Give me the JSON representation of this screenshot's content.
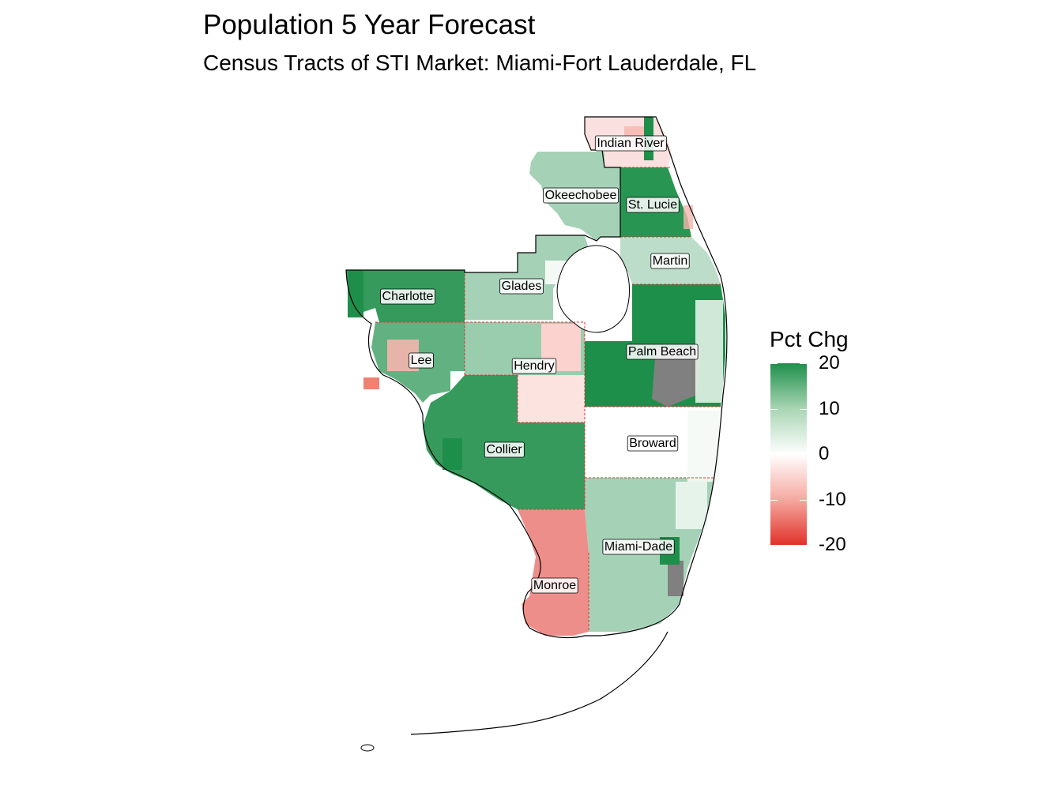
{
  "title": "Population 5 Year Forecast",
  "subtitle": "Census Tracts of STI Market: Miami-Fort Lauderdale, FL",
  "legend": {
    "title": "Pct Chg",
    "ticks": [
      {
        "value": 20,
        "label": "20"
      },
      {
        "value": 10,
        "label": "10"
      },
      {
        "value": 0,
        "label": "0"
      },
      {
        "value": -10,
        "label": "-10"
      },
      {
        "value": -20,
        "label": "-20"
      }
    ],
    "colors": {
      "high": "#1e8f4a",
      "mid": "#ffffff",
      "low": "#e0322a",
      "na": "#808080",
      "boundary": "#e0322a"
    }
  },
  "counties": [
    {
      "name": "Indian River",
      "pct_chg": -3
    },
    {
      "name": "Okeechobee",
      "pct_chg": 8
    },
    {
      "name": "St. Lucie",
      "pct_chg": 19
    },
    {
      "name": "Martin",
      "pct_chg": 6
    },
    {
      "name": "Glades",
      "pct_chg": 8
    },
    {
      "name": "Charlotte",
      "pct_chg": 18
    },
    {
      "name": "Lee",
      "pct_chg": 14
    },
    {
      "name": "Hendry",
      "pct_chg": 9
    },
    {
      "name": "Palm Beach",
      "pct_chg": 20
    },
    {
      "name": "Broward",
      "pct_chg": 0
    },
    {
      "name": "Collier",
      "pct_chg": 18
    },
    {
      "name": "Miami-Dade",
      "pct_chg": 8
    },
    {
      "name": "Monroe",
      "pct_chg": -11
    }
  ]
}
